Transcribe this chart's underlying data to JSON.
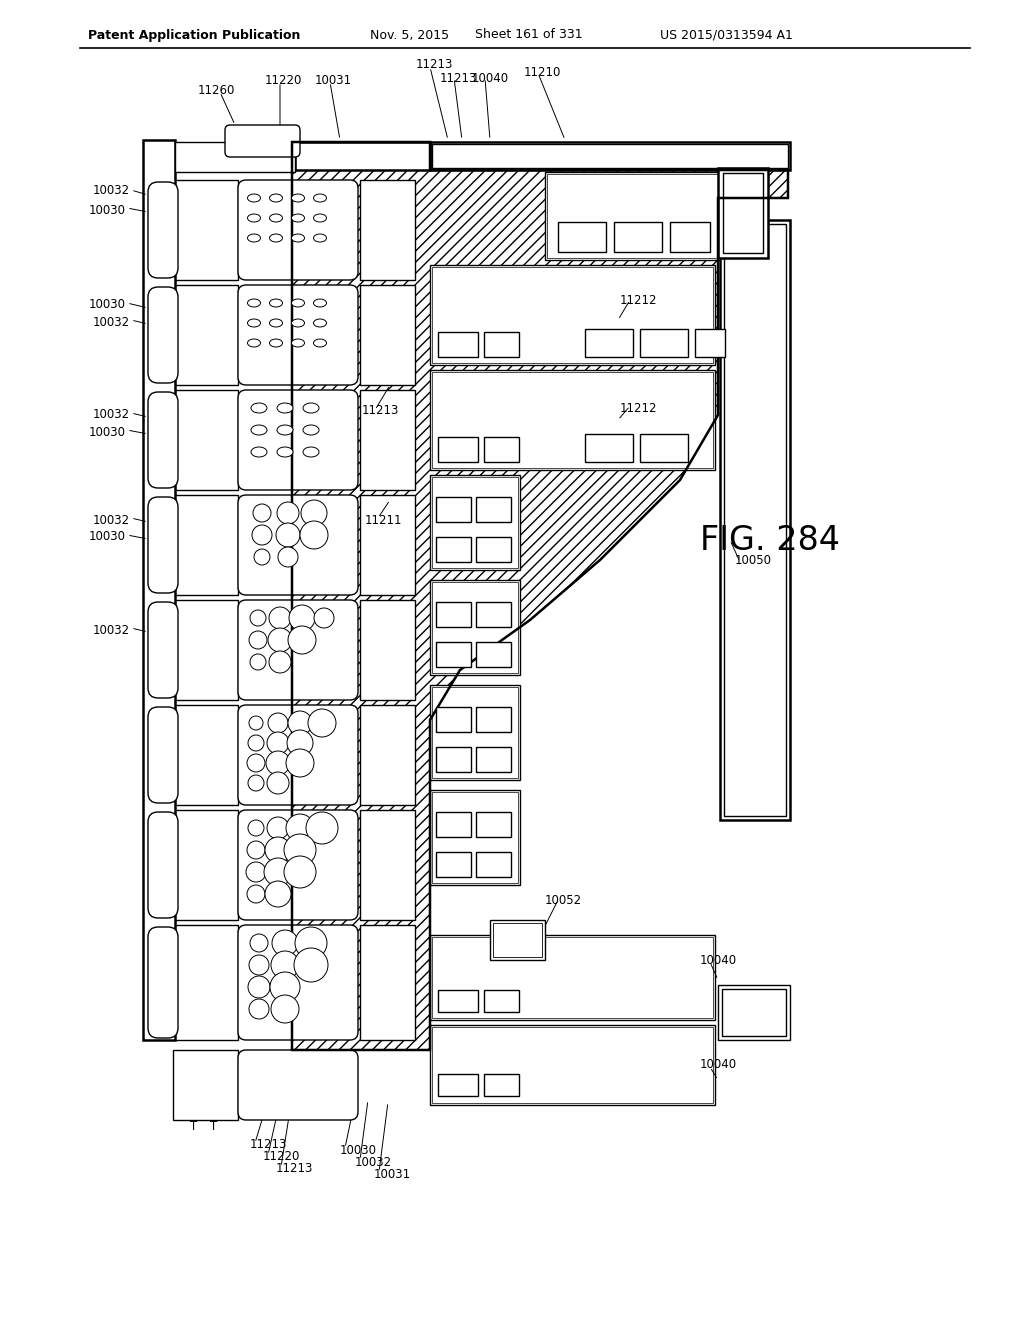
{
  "title_left": "Patent Application Publication",
  "title_mid": "Nov. 5, 2015",
  "title_sheet": "Sheet 161 of 331",
  "title_num": "US 2015/0313594 A1",
  "fig_label": "FIG. 284",
  "bg_color": "#ffffff",
  "lc": "#000000",
  "lw": 1.0,
  "lw_thick": 1.8
}
